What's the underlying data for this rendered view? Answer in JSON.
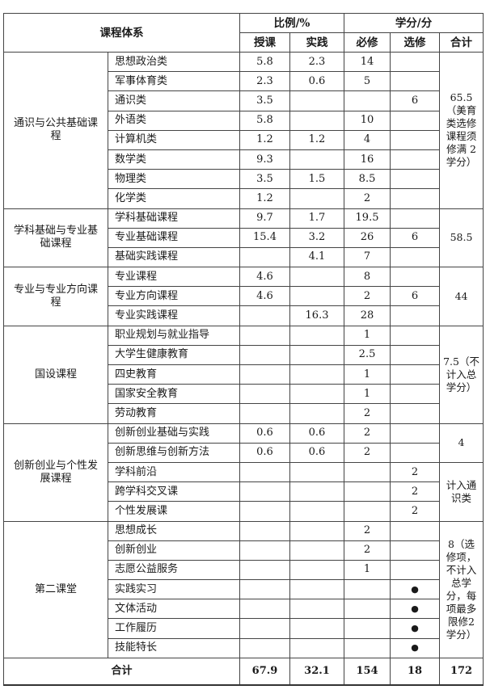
{
  "header": {
    "system": "课程体系",
    "ratio": "比例/%",
    "credits": "学分/分",
    "teach": "授课",
    "practice": "实践",
    "required": "必修",
    "elective": "选修",
    "total": "合计"
  },
  "groups": [
    {
      "name": "通识与公共基础课程",
      "rows": [
        [
          "思想政治类",
          "5.8",
          "2.3",
          "14",
          ""
        ],
        [
          "军事体育类",
          "2.3",
          "0.6",
          "5",
          ""
        ],
        [
          "通识类",
          "3.5",
          "",
          "",
          "6"
        ],
        [
          "外语类",
          "5.8",
          "",
          "10",
          ""
        ],
        [
          "计算机类",
          "1.2",
          "1.2",
          "4",
          ""
        ],
        [
          "数学类",
          "9.3",
          "",
          "16",
          ""
        ],
        [
          "物理类",
          "3.5",
          "1.5",
          "8.5",
          ""
        ],
        [
          "化学类",
          "1.2",
          "",
          "2",
          ""
        ]
      ],
      "totals": [
        {
          "text": "65.5（美育类选修课程须修满 2 学分）",
          "span": 8
        }
      ]
    },
    {
      "name": "学科基础与专业基础课程",
      "rows": [
        [
          "学科基础课程",
          "9.7",
          "1.7",
          "19.5",
          ""
        ],
        [
          "专业基础课程",
          "15.4",
          "3.2",
          "26",
          "6"
        ],
        [
          "基础实践课程",
          "",
          "4.1",
          "7",
          ""
        ]
      ],
      "totals": [
        {
          "text": "58.5",
          "span": 3
        }
      ]
    },
    {
      "name": "专业与专业方向课程",
      "rows": [
        [
          "专业课程",
          "4.6",
          "",
          "8",
          ""
        ],
        [
          "专业方向课程",
          "4.6",
          "",
          "2",
          "6"
        ],
        [
          "专业实践课程",
          "",
          "16.3",
          "28",
          ""
        ]
      ],
      "totals": [
        {
          "text": "44",
          "span": 3
        }
      ]
    },
    {
      "name": "国设课程",
      "rows": [
        [
          "职业规划与就业指导",
          "",
          "",
          "1",
          ""
        ],
        [
          "大学生健康教育",
          "",
          "",
          "2.5",
          ""
        ],
        [
          "四史教育",
          "",
          "",
          "1",
          ""
        ],
        [
          "国家安全教育",
          "",
          "",
          "1",
          ""
        ],
        [
          "劳动教育",
          "",
          "",
          "2",
          ""
        ]
      ],
      "totals": [
        {
          "text": "7.5（不计入总学分）",
          "span": 5
        }
      ]
    },
    {
      "name": "创新创业与个性发展课程",
      "rows": [
        [
          "创新创业基础与实践",
          "0.6",
          "0.6",
          "2",
          ""
        ],
        [
          "创新思维与创新方法",
          "0.6",
          "0.6",
          "2",
          ""
        ],
        [
          "学科前沿",
          "",
          "",
          "",
          "2"
        ],
        [
          "跨学科交叉课",
          "",
          "",
          "",
          "2"
        ],
        [
          "个性发展课",
          "",
          "",
          "",
          "2"
        ]
      ],
      "totals": [
        {
          "text": "4",
          "span": 2
        },
        {
          "text": "计入通识类",
          "span": 3
        }
      ]
    },
    {
      "name": "第二课堂",
      "rows": [
        [
          "思想成长",
          "",
          "",
          "2",
          ""
        ],
        [
          "创新创业",
          "",
          "",
          "2",
          ""
        ],
        [
          "志愿公益服务",
          "",
          "",
          "1",
          ""
        ],
        [
          "实践实习",
          "",
          "",
          "",
          "●"
        ],
        [
          "文体活动",
          "",
          "",
          "",
          "●"
        ],
        [
          "工作履历",
          "",
          "",
          "",
          "●"
        ],
        [
          "技能特长",
          "",
          "",
          "",
          "●"
        ]
      ],
      "totals": [
        {
          "text": "8（选修项，不计入总学分，每项最多限修2学分）",
          "span": 7
        }
      ]
    }
  ],
  "summary": {
    "label": "合计",
    "teach": "67.9",
    "practice": "32.1",
    "required": "154",
    "elective": "18",
    "total": "172"
  }
}
